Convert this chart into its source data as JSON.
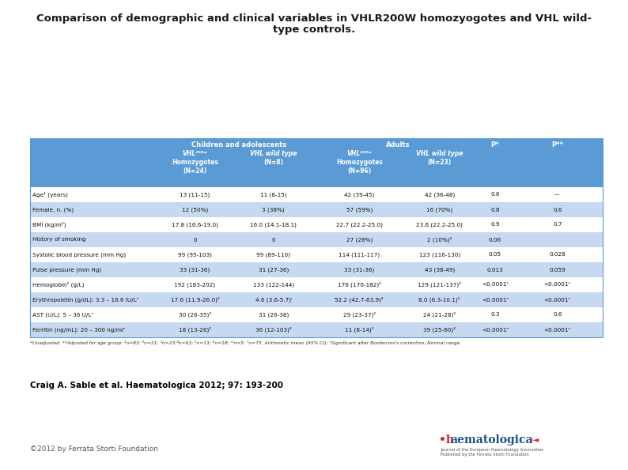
{
  "title_line1": "Comparison of demographic and clinical variables in VHLR200W homozyogotes and VHL wild-",
  "title_line2": "type controls.",
  "header_bg": "#5b9bd5",
  "alt_row_bg": "#c6d9f0",
  "white_row_bg": "#ffffff",
  "rows": [
    [
      "Age¹ (years)",
      "13 (11-15)",
      "11 (8-15)",
      "42 (39-45)",
      "42 (36-48)",
      "0.6",
      "---"
    ],
    [
      "Female, n. (%)",
      "12 (50%)",
      "3 (38%)",
      "57 (59%)",
      "16 (70%)",
      "0.8",
      "0.6"
    ],
    [
      "BMI (kg/m²)",
      "17.8 (16.6-19.0)",
      "16.0 (14.1-18.1)",
      "22.7 (22.2-25.0)",
      "23.6 (22.2-25.0)",
      "0.9",
      "0.7"
    ],
    [
      "History of smoking",
      "0",
      "0",
      "27 (28%)",
      "2 (10%)²",
      "0.06",
      ""
    ],
    [
      "Systolic blood pressure (mm Hg)",
      "99 (95-103)",
      "99 (89-110)",
      "114 (111-117)",
      "123 (116-130)",
      "0.05",
      "0.028"
    ],
    [
      "Pulse pressure (mm Hg)",
      "33 (31-36)",
      "31 (27-36)",
      "33 (31-36)",
      "43 (38-49)",
      "0.013",
      "0.059"
    ],
    [
      "Hemoglobin¹ (g/L)",
      "192 (183-202)",
      "133 (122-144)",
      "176 (170-182)²",
      "129 (121-137)²",
      "<0.0001ᶜ",
      "<0.0001ᶜ"
    ],
    [
      "Erythropoietin (g/dL): 3.3 – 16.6 IU/Lᶜ",
      "17.6 (11.9-26.0)²",
      "4.6 (3.6-5.7)ᵎ",
      "52.2 (42.7-63.9)²",
      "8.0 (6.3-10.1)²",
      "<0.0001ᶜ",
      "<0.0001ᶜ"
    ],
    [
      "AST (U/L): 5 – 36 U/Lᶜ",
      "30 (26-35)²",
      "31 (26-38)",
      "29 (23-37)²",
      "24 (21-28)²",
      "0.3",
      "0.6"
    ],
    [
      "Ferritin (ng/mL): 20 – 300 ng/mlᶜ",
      "18 (13-26)²",
      "36 (12-103)²",
      "11 (8-14)²",
      "39 (25-60)²",
      "<0.0001ᶜ",
      "<0.0001ᶜ"
    ]
  ],
  "footnote": "*Unadjusted. **Adjusted for age group. ¹n=83; ²n=21; ³n=23;⁴n=63; ⁵n=13; ⁶n=18; ᵐn=5; ⁷n=75. Arithmetic mean (95% CI); ᶜSignificant after Bonferroni's correction; Normal range.",
  "citation": "Craig A. Sable et al. Haematologica 2012; 97: 193-200",
  "copyright": "©2012 by Ferrata Storti Foundation",
  "logo_subtext1": "Journal of the European Haematology Association",
  "logo_subtext2": "Published by the Ferrata Storti Foundation"
}
